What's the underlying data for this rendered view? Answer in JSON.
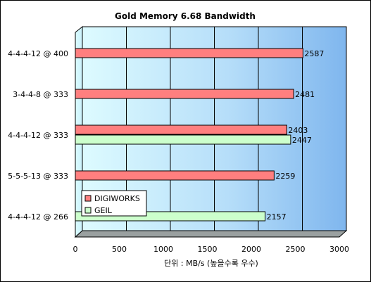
{
  "chart_data": {
    "type": "bar",
    "orientation": "horizontal",
    "title": "Gold Memory 6.68 Bandwidth",
    "xlabel": "단위 : MB/s (높을수록 우수)",
    "ylabel": "",
    "xlim": [
      0,
      3000
    ],
    "x_ticks": [
      "0",
      "500",
      "1000",
      "1500",
      "2000",
      "2500",
      "3000"
    ],
    "categories": [
      "4-4-4-12 @ 400",
      "3-4-4-8 @ 333",
      "4-4-4-12 @ 333",
      "5-5-5-13 @ 333",
      "4-4-4-12 @ 266"
    ],
    "series": [
      {
        "name": "DIGIWORKS",
        "color": "#ff7f7f",
        "values": [
          2587,
          2481,
          2403,
          2259,
          null
        ]
      },
      {
        "name": "GEIL",
        "color": "#ccffcc",
        "values": [
          null,
          null,
          2447,
          null,
          2157
        ]
      }
    ],
    "grid": true,
    "legend_position": "inside-bottom-left"
  }
}
